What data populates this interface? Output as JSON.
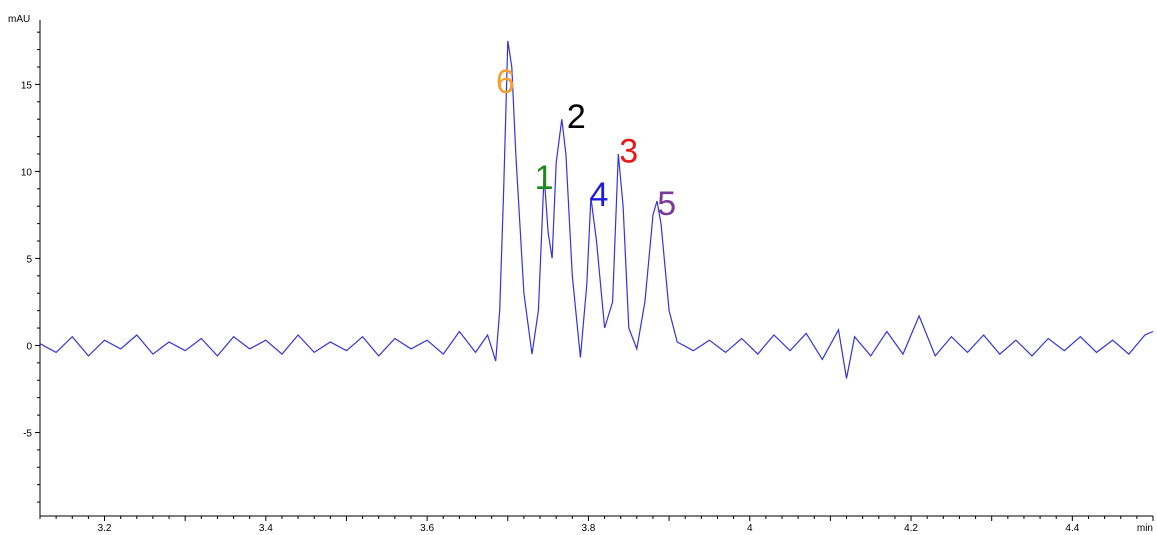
{
  "chart_data": {
    "type": "line",
    "title": "",
    "xlabel": "min",
    "ylabel": "mAU",
    "xlim": [
      3.12,
      4.5
    ],
    "ylim": [
      -9.8,
      18.7
    ],
    "x_ticks": [
      3.2,
      3.4,
      3.6,
      3.8,
      4,
      4.2,
      4.4
    ],
    "x_tick_labels": [
      "3.2",
      "3.4",
      "3.6",
      "3.8",
      "4",
      "4.2",
      "4.4"
    ],
    "y_ticks": [
      15,
      10,
      5,
      0,
      -5
    ],
    "y_tick_labels": [
      "15",
      "10",
      "5",
      "0",
      "-5"
    ],
    "grid": false,
    "line_color": "#3333dd",
    "series": [
      {
        "x": [
          3.12,
          3.14,
          3.16,
          3.18,
          3.2,
          3.22,
          3.24,
          3.26,
          3.28,
          3.3,
          3.32,
          3.34,
          3.36,
          3.38,
          3.4,
          3.42,
          3.44,
          3.46,
          3.48,
          3.5,
          3.52,
          3.54,
          3.56,
          3.58,
          3.6,
          3.62,
          3.64,
          3.66,
          3.675,
          3.685,
          3.69,
          3.695,
          3.7,
          3.705,
          3.71,
          3.72,
          3.73,
          3.738,
          3.745,
          3.75,
          3.755,
          3.76,
          3.767,
          3.772,
          3.78,
          3.79,
          3.798,
          3.803,
          3.81,
          3.82,
          3.83,
          3.837,
          3.843,
          3.85,
          3.86,
          3.87,
          3.88,
          3.885,
          3.89,
          3.9,
          3.91,
          3.93,
          3.95,
          3.97,
          3.99,
          4.01,
          4.03,
          4.05,
          4.07,
          4.09,
          4.11,
          4.12,
          4.13,
          4.15,
          4.17,
          4.19,
          4.21,
          4.23,
          4.25,
          4.27,
          4.29,
          4.31,
          4.33,
          4.35,
          4.37,
          4.39,
          4.41,
          4.43,
          4.45,
          4.47,
          4.49,
          4.5
        ],
        "y": [
          0.1,
          -0.4,
          0.5,
          -0.6,
          0.3,
          -0.2,
          0.6,
          -0.5,
          0.2,
          -0.3,
          0.4,
          -0.6,
          0.5,
          -0.2,
          0.3,
          -0.5,
          0.6,
          -0.4,
          0.2,
          -0.3,
          0.5,
          -0.6,
          0.4,
          -0.2,
          0.3,
          -0.5,
          0.8,
          -0.4,
          0.6,
          -0.9,
          2.0,
          9.0,
          17.5,
          16.0,
          11.0,
          3.0,
          -0.5,
          2.0,
          9.8,
          6.5,
          5.0,
          10.5,
          13.0,
          11.0,
          4.0,
          -0.7,
          3.5,
          8.5,
          6.0,
          1.0,
          2.5,
          11.0,
          8.0,
          1.0,
          -0.2,
          2.5,
          7.5,
          8.3,
          7.0,
          2.0,
          0.2,
          -0.3,
          0.3,
          -0.4,
          0.4,
          -0.5,
          0.6,
          -0.3,
          0.7,
          -0.8,
          0.9,
          -1.9,
          0.5,
          -0.6,
          0.8,
          -0.5,
          1.7,
          -0.6,
          0.5,
          -0.4,
          0.6,
          -0.5,
          0.3,
          -0.6,
          0.4,
          -0.3,
          0.5,
          -0.4,
          0.3,
          -0.5,
          0.6,
          0.8
        ]
      }
    ],
    "annotations": [
      {
        "text": "6",
        "x": 3.697,
        "y": 14.5,
        "color": "#f5a030"
      },
      {
        "text": "1",
        "x": 3.745,
        "y": 9.0,
        "color": "#1a8a1a"
      },
      {
        "text": "2",
        "x": 3.785,
        "y": 12.5,
        "color": "#000000"
      },
      {
        "text": "4",
        "x": 3.813,
        "y": 8.0,
        "color": "#1a1ae0"
      },
      {
        "text": "3",
        "x": 3.85,
        "y": 10.5,
        "color": "#e81818"
      },
      {
        "text": "5",
        "x": 3.897,
        "y": 7.5,
        "color": "#7a3a9a"
      }
    ]
  }
}
